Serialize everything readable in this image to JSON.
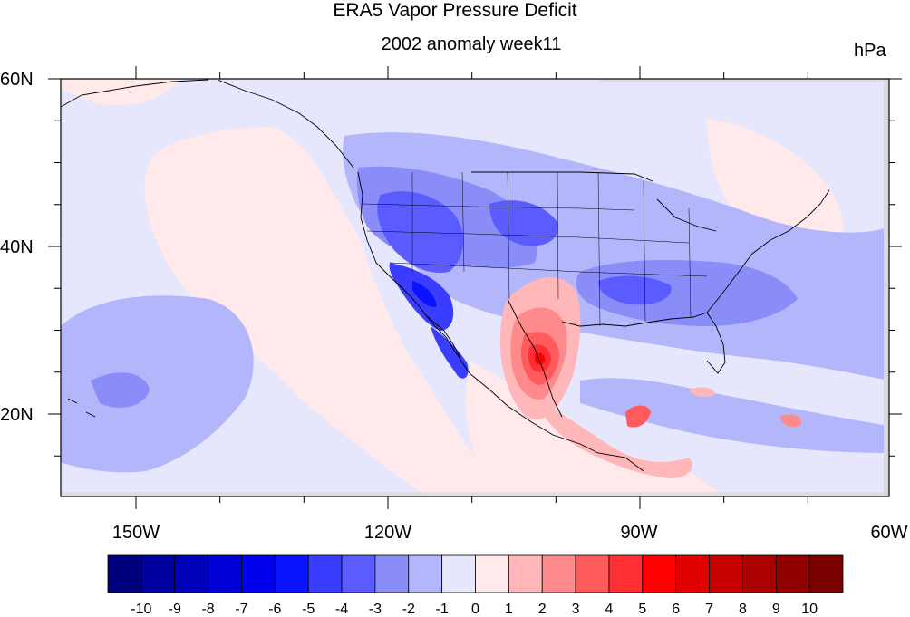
{
  "title": "ERA5 Vapor Pressure Deficit",
  "subtitle": "2002 anomaly week11",
  "units": "hPa",
  "lat_ticks": [
    "60N",
    "40N",
    "20N"
  ],
  "lon_ticks": [
    "150W",
    "120W",
    "90W",
    "60W"
  ],
  "colorbar": {
    "labels": [
      "-10",
      "-9",
      "-8",
      "-7",
      "-6",
      "-5",
      "-4",
      "-3",
      "-2",
      "-1",
      "0",
      "1",
      "2",
      "3",
      "4",
      "5",
      "6",
      "7",
      "8",
      "9",
      "10"
    ],
    "colors": [
      "#00007f",
      "#00009e",
      "#0000b8",
      "#0000d6",
      "#0000ef",
      "#0a14ff",
      "#3a3cff",
      "#5a5cff",
      "#8a8cf8",
      "#b4b6fb",
      "#e6e7fc",
      "#ffe9ea",
      "#ffb7b9",
      "#ff8a8c",
      "#ff5a5c",
      "#ff2f33",
      "#ff0000",
      "#e00000",
      "#c60000",
      "#aa0000",
      "#900000",
      "#7a0000"
    ]
  }
}
